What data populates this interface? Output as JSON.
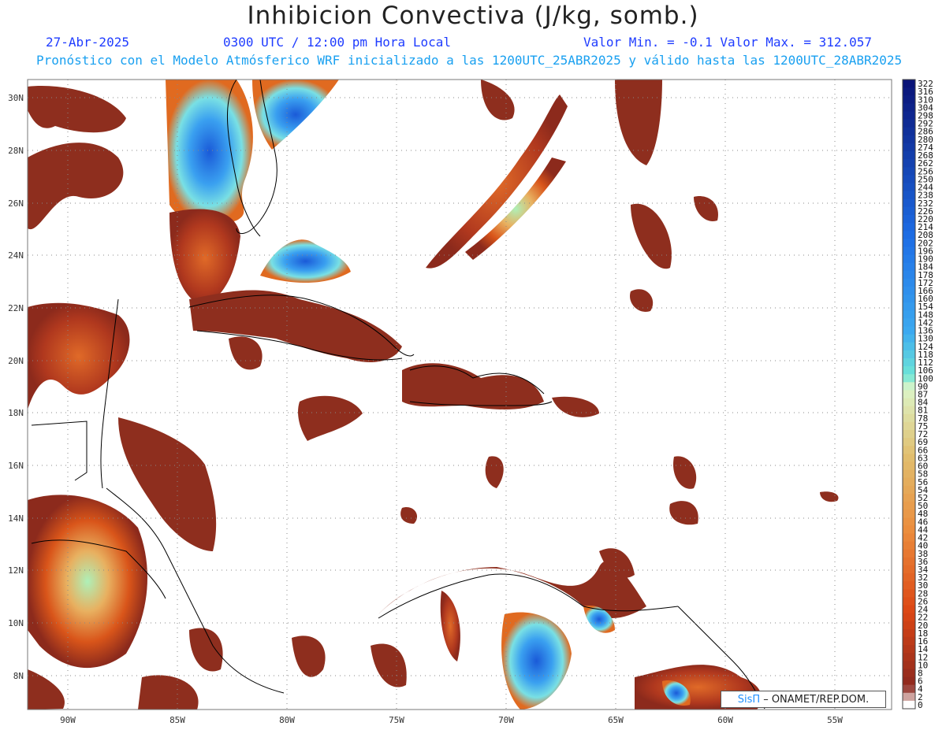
{
  "header": {
    "title": "Inhibicion Convectiva (J/kg, somb.)",
    "date": "27-Abr-2025",
    "time": "0300 UTC / 12:00 pm Hora Local",
    "range": "Valor Min. = -0.1  Valor Max. = 312.057",
    "forecast_info": "Pronóstico con el Modelo Atmósferico WRF inicializado a las 1200UTC_25ABR2025 y válido hasta las  1200UTC_28ABR2025"
  },
  "map": {
    "lon_range": [
      -92,
      -52.5
    ],
    "lat_range": [
      6.8,
      30.8
    ],
    "lon_ticks": [
      "90W",
      "85W",
      "80W",
      "75W",
      "70W",
      "65W",
      "60W",
      "55W"
    ],
    "lat_ticks": [
      "30N",
      "28N",
      "26N",
      "24N",
      "22N",
      "20N",
      "18N",
      "16N",
      "14N",
      "12N",
      "10N",
      "8N"
    ]
  },
  "colorbar": {
    "labels": [
      "322",
      "316",
      "310",
      "304",
      "298",
      "292",
      "286",
      "280",
      "274",
      "268",
      "262",
      "256",
      "250",
      "244",
      "238",
      "232",
      "226",
      "220",
      "214",
      "208",
      "202",
      "196",
      "190",
      "184",
      "178",
      "172",
      "166",
      "160",
      "154",
      "148",
      "142",
      "136",
      "130",
      "124",
      "118",
      "112",
      "106",
      "100",
      "90",
      "87",
      "84",
      "81",
      "78",
      "75",
      "72",
      "69",
      "66",
      "63",
      "60",
      "58",
      "56",
      "54",
      "52",
      "50",
      "48",
      "46",
      "44",
      "42",
      "40",
      "38",
      "36",
      "34",
      "32",
      "30",
      "28",
      "26",
      "24",
      "22",
      "20",
      "18",
      "16",
      "14",
      "12",
      "10",
      "8",
      "6",
      "4",
      "2",
      "0"
    ]
  },
  "credit": {
    "brand": "SisΠ",
    "org": "– ONAMET/REP.DOM."
  }
}
